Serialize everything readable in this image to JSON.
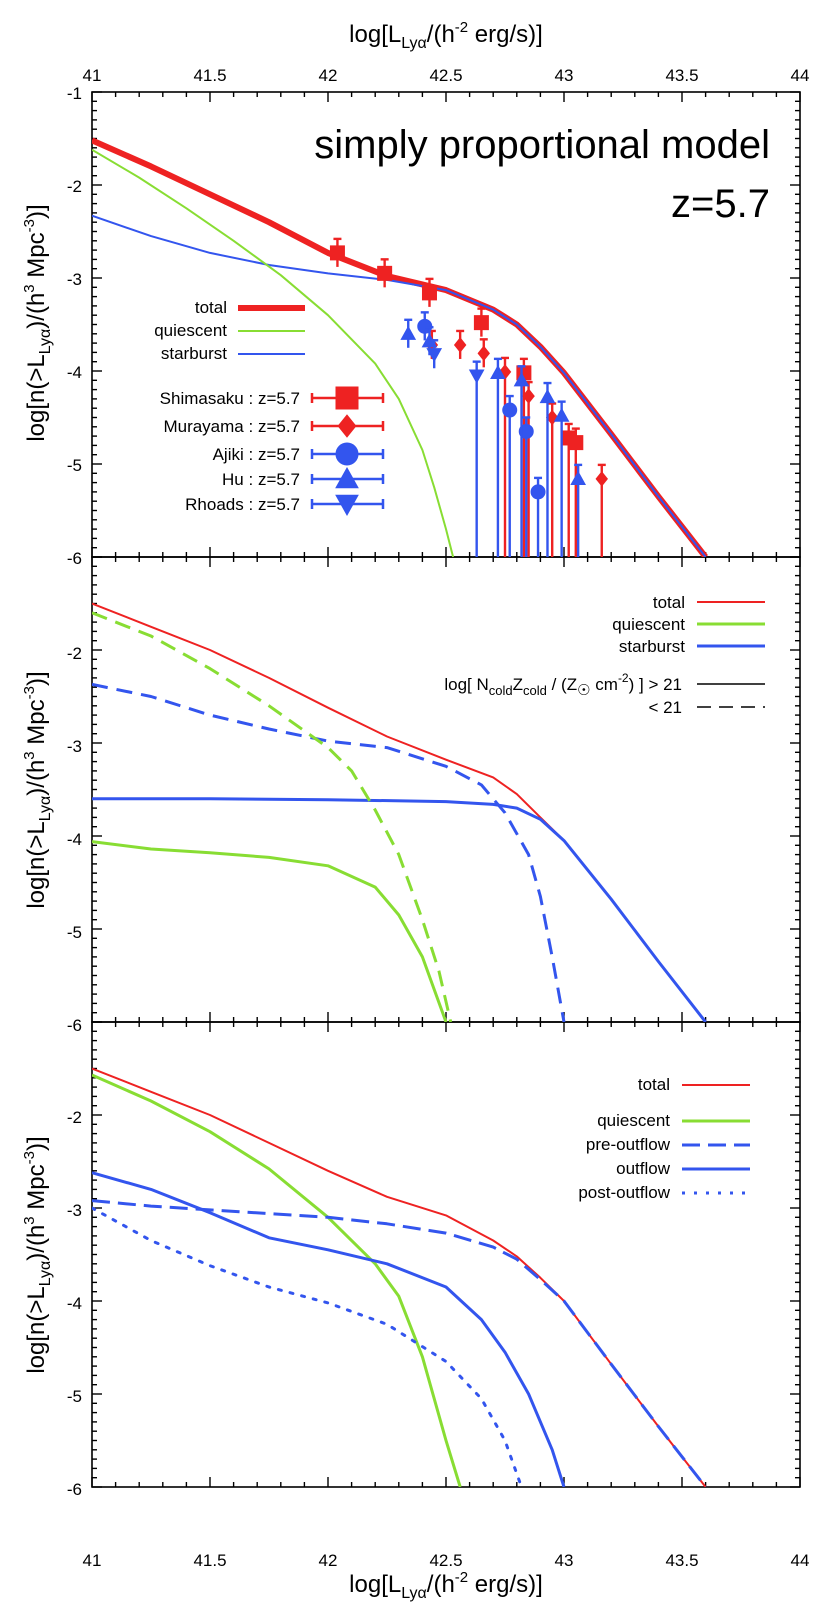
{
  "figure": {
    "top_axis_title": {
      "main": "log[L",
      "sub1": "Lyα",
      "mid": "/(h",
      "sup": "-2",
      "end": " erg/s)]"
    },
    "bottom_axis_title": {
      "main": "log[L",
      "sub1": "Lyα",
      "mid": "/(h",
      "sup": "-2",
      "end": " erg/s)]"
    },
    "y_axis_title": {
      "main": "log[n(>L",
      "sub1": "Lyα",
      "mid": ")/(h",
      "sup1": "3",
      "mid2": " Mpc",
      "sup2": "-3",
      "end": ")]"
    },
    "x_tick_labels": [
      "41",
      "41.5",
      "42",
      "42.5",
      "43",
      "43.5",
      "44"
    ],
    "panel_top_y_ticks": [
      "-1",
      "-2",
      "-3",
      "-4",
      "-5",
      "-6"
    ],
    "panel_mid_y_ticks": [
      "-2",
      "-3",
      "-4",
      "-5",
      "-6"
    ],
    "panel_bot_y_ticks": [
      "-2",
      "-3",
      "-4",
      "-5",
      "-6"
    ],
    "panel_top_title": "simply proportional model",
    "panel_top_redshift": "z=5.7"
  },
  "colors": {
    "red": "#ee2222",
    "green": "#88dd33",
    "blue": "#3355ee",
    "black": "#000000"
  },
  "legends": {
    "top": [
      {
        "label": "total",
        "color": "#ee2222",
        "style": "thick"
      },
      {
        "label": "quiescent",
        "color": "#88dd33",
        "style": "thin"
      },
      {
        "label": "starburst",
        "color": "#3355ee",
        "style": "thin"
      }
    ],
    "top_obs": [
      {
        "survey": "Shimasaku",
        "z": "z=5.7",
        "color": "#ee2222",
        "marker": "square"
      },
      {
        "survey": "Murayama",
        "z": "z=5.7",
        "color": "#ee2222",
        "marker": "diamond"
      },
      {
        "survey": "Ajiki",
        "z": "z=5.7",
        "color": "#3355ee",
        "marker": "circle"
      },
      {
        "survey": "Hu",
        "z": "z=5.7",
        "color": "#3355ee",
        "marker": "triangle-up"
      },
      {
        "survey": "Rhoads",
        "z": "z=5.7",
        "color": "#3355ee",
        "marker": "triangle-down"
      }
    ],
    "mid": [
      {
        "label": "total",
        "color": "#ee2222"
      },
      {
        "label": "quiescent",
        "color": "#88dd33"
      },
      {
        "label": "starburst",
        "color": "#3355ee"
      }
    ],
    "mid_style": {
      "solid": {
        "pre": "log[ N",
        "sub1": "cold",
        "mid": "Z",
        "sub2": "cold",
        "mid2": " / (Z",
        "sun": "☉",
        "mid3": " cm",
        "sup": "-2",
        "end": ") ] > 21"
      },
      "dashed": "< 21"
    },
    "bot": [
      {
        "label": "total",
        "color": "#ee2222",
        "dash": ""
      },
      {
        "label": "quiescent",
        "color": "#88dd33",
        "dash": ""
      },
      {
        "label": "pre-outflow",
        "color": "#3355ee",
        "dash": "16,7"
      },
      {
        "label": "outflow",
        "color": "#3355ee",
        "dash": ""
      },
      {
        "label": "post-outflow",
        "color": "#3355ee",
        "dash": "3,9"
      }
    ]
  },
  "chart_data": [
    {
      "type": "line",
      "panel": "top",
      "title": "simply proportional model",
      "annotation": "z=5.7",
      "xlim": [
        41,
        44
      ],
      "ylim": [
        -6,
        -1
      ],
      "xlabel": "log[LLyα/(h-2 erg/s)]",
      "ylabel": "log[n(>LLyα)/(h3 Mpc-3)]",
      "series": [
        {
          "name": "total",
          "color": "#ee2222",
          "width": 6,
          "x": [
            41,
            41.25,
            41.5,
            41.75,
            42,
            42.25,
            42.5,
            42.7,
            42.8,
            42.9,
            43,
            43.2,
            43.4,
            43.6
          ],
          "y": [
            -1.52,
            -1.8,
            -2.1,
            -2.4,
            -2.73,
            -2.98,
            -3.13,
            -3.34,
            -3.5,
            -3.74,
            -4.02,
            -4.68,
            -5.35,
            -6.0
          ]
        },
        {
          "name": "starburst",
          "color": "#3355ee",
          "width": 2,
          "x": [
            41,
            41.25,
            41.5,
            41.75,
            42,
            42.25,
            42.5,
            42.7,
            42.8,
            42.9,
            43,
            43.2,
            43.4,
            43.6
          ],
          "y": [
            -2.33,
            -2.55,
            -2.73,
            -2.86,
            -2.95,
            -3.02,
            -3.13,
            -3.34,
            -3.5,
            -3.74,
            -4.02,
            -4.68,
            -5.35,
            -6.0
          ]
        },
        {
          "name": "quiescent",
          "color": "#88dd33",
          "width": 2,
          "x": [
            41,
            41.2,
            41.4,
            41.6,
            41.8,
            42,
            42.2,
            42.3,
            42.4,
            42.45,
            42.5,
            42.53
          ],
          "y": [
            -1.62,
            -1.92,
            -2.25,
            -2.6,
            -2.97,
            -3.4,
            -3.92,
            -4.3,
            -4.85,
            -5.25,
            -5.7,
            -6.0
          ]
        }
      ],
      "observations": [
        {
          "name": "Shimasaku : z=5.7",
          "marker": "square",
          "color": "#ee2222",
          "points": [
            {
              "x": 42.04,
              "y": -2.73
            },
            {
              "x": 42.24,
              "y": -2.95
            },
            {
              "x": 42.43,
              "y": -3.16
            },
            {
              "x": 42.65,
              "y": -3.48
            },
            {
              "x": 42.83,
              "y": -4.02
            },
            {
              "x": 43.02,
              "y": -4.72
            },
            {
              "x": 43.05,
              "y": -4.77
            }
          ]
        },
        {
          "name": "Murayama : z=5.7",
          "marker": "diamond",
          "color": "#ee2222",
          "points": [
            {
              "x": 42.44,
              "y": -3.72
            },
            {
              "x": 42.56,
              "y": -3.72
            },
            {
              "x": 42.66,
              "y": -3.81
            },
            {
              "x": 42.75,
              "y": -4.01
            },
            {
              "x": 42.85,
              "y": -4.27
            },
            {
              "x": 42.95,
              "y": -4.5
            },
            {
              "x": 43.16,
              "y": -5.16
            }
          ]
        },
        {
          "name": "Ajiki : z=5.7",
          "marker": "circle",
          "color": "#3355ee",
          "points": [
            {
              "x": 42.41,
              "y": -3.52
            },
            {
              "x": 42.77,
              "y": -4.42
            },
            {
              "x": 42.84,
              "y": -4.65
            },
            {
              "x": 42.89,
              "y": -5.3
            }
          ]
        },
        {
          "name": "Hu : z=5.7",
          "marker": "triangle-up",
          "color": "#3355ee",
          "points": [
            {
              "x": 42.34,
              "y": -3.6
            },
            {
              "x": 42.43,
              "y": -3.68
            },
            {
              "x": 42.72,
              "y": -4.02
            },
            {
              "x": 42.82,
              "y": -4.1
            },
            {
              "x": 42.93,
              "y": -4.28
            },
            {
              "x": 42.99,
              "y": -4.48
            },
            {
              "x": 43.06,
              "y": -5.16
            }
          ]
        },
        {
          "name": "Rhoads : z=5.7",
          "marker": "triangle-down",
          "color": "#3355ee",
          "points": [
            {
              "x": 42.45,
              "y": -3.82
            },
            {
              "x": 42.63,
              "y": -4.05
            }
          ]
        }
      ]
    },
    {
      "type": "line",
      "panel": "middle",
      "xlim": [
        41,
        44
      ],
      "ylim": [
        -6,
        -1.4
      ],
      "series": [
        {
          "name": "total",
          "color": "#ee2222",
          "width": 2,
          "dash": "",
          "x": [
            41,
            41.25,
            41.5,
            41.75,
            42,
            42.25,
            42.5,
            42.7,
            42.8,
            42.9,
            43,
            43.2,
            43.4,
            43.6
          ],
          "y": [
            -1.5,
            -1.75,
            -2.0,
            -2.3,
            -2.62,
            -2.93,
            -3.18,
            -3.37,
            -3.55,
            -3.8,
            -4.05,
            -4.68,
            -5.35,
            -6.0
          ]
        },
        {
          "name": "starburst",
          "color": "#3355ee",
          "width": 3,
          "dash": "",
          "x": [
            41,
            41.5,
            42,
            42.5,
            42.7,
            42.8,
            42.9,
            43,
            43.2,
            43.4,
            43.6
          ],
          "y": [
            -3.6,
            -3.6,
            -3.61,
            -3.63,
            -3.66,
            -3.7,
            -3.82,
            -4.05,
            -4.68,
            -5.35,
            -6.0
          ]
        },
        {
          "name": "starburst",
          "color": "#3355ee",
          "width": 3,
          "dash": "16,9",
          "x": [
            41,
            41.25,
            41.5,
            41.75,
            42,
            42.25,
            42.5,
            42.65,
            42.75,
            42.85,
            42.9,
            42.95,
            43
          ],
          "y": [
            -2.37,
            -2.5,
            -2.7,
            -2.85,
            -2.98,
            -3.05,
            -3.25,
            -3.45,
            -3.75,
            -4.2,
            -4.65,
            -5.3,
            -6.0
          ]
        },
        {
          "name": "quiescent",
          "color": "#88dd33",
          "width": 3,
          "dash": "",
          "x": [
            41,
            41.25,
            41.5,
            41.75,
            42,
            42.2,
            42.3,
            42.4,
            42.45,
            42.5
          ],
          "y": [
            -4.06,
            -4.14,
            -4.18,
            -4.23,
            -4.32,
            -4.55,
            -4.85,
            -5.3,
            -5.65,
            -6.0
          ]
        },
        {
          "name": "quiescent",
          "color": "#88dd33",
          "width": 3,
          "dash": "16,9",
          "x": [
            41,
            41.25,
            41.5,
            41.75,
            42,
            42.1,
            42.2,
            42.3,
            42.4,
            42.47,
            42.52
          ],
          "y": [
            -1.6,
            -1.85,
            -2.2,
            -2.6,
            -3.05,
            -3.3,
            -3.72,
            -4.2,
            -4.9,
            -5.45,
            -6.0
          ]
        }
      ]
    },
    {
      "type": "line",
      "panel": "bottom",
      "xlim": [
        41,
        44
      ],
      "ylim": [
        -6,
        -1.4
      ],
      "series": [
        {
          "name": "total",
          "color": "#ee2222",
          "width": 2,
          "dash": "",
          "x": [
            41,
            41.25,
            41.5,
            41.75,
            42,
            42.25,
            42.5,
            42.7,
            42.8,
            42.9,
            43,
            43.2,
            43.4,
            43.6
          ],
          "y": [
            -1.5,
            -1.75,
            -2.0,
            -2.3,
            -2.6,
            -2.88,
            -3.08,
            -3.35,
            -3.52,
            -3.75,
            -4.0,
            -4.68,
            -5.35,
            -6.0
          ]
        },
        {
          "name": "quiescent",
          "color": "#88dd33",
          "width": 3,
          "dash": "",
          "x": [
            41,
            41.25,
            41.5,
            41.75,
            42,
            42.2,
            42.3,
            42.4,
            42.5,
            42.56
          ],
          "y": [
            -1.57,
            -1.85,
            -2.18,
            -2.58,
            -3.1,
            -3.6,
            -3.95,
            -4.6,
            -5.5,
            -6.0
          ]
        },
        {
          "name": "pre-outflow",
          "color": "#3355ee",
          "width": 3,
          "dash": "18,8",
          "x": [
            41,
            41.25,
            41.5,
            41.75,
            42,
            42.25,
            42.5,
            42.7,
            42.8,
            42.9,
            43,
            43.2,
            43.4,
            43.6
          ],
          "y": [
            -2.92,
            -2.98,
            -3.02,
            -3.06,
            -3.1,
            -3.17,
            -3.27,
            -3.42,
            -3.55,
            -3.77,
            -4.0,
            -4.68,
            -5.35,
            -6.0
          ]
        },
        {
          "name": "outflow",
          "color": "#3355ee",
          "width": 3,
          "dash": "",
          "x": [
            41,
            41.25,
            41.5,
            41.75,
            42,
            42.25,
            42.5,
            42.65,
            42.75,
            42.85,
            42.95,
            43
          ],
          "y": [
            -2.62,
            -2.8,
            -3.05,
            -3.32,
            -3.45,
            -3.6,
            -3.85,
            -4.2,
            -4.55,
            -5.0,
            -5.6,
            -6.0
          ]
        },
        {
          "name": "post-outflow",
          "color": "#3355ee",
          "width": 3,
          "dash": "3,9",
          "x": [
            41,
            41.25,
            41.5,
            41.75,
            42,
            42.25,
            42.5,
            42.65,
            42.75,
            42.82
          ],
          "y": [
            -3.0,
            -3.35,
            -3.62,
            -3.85,
            -4.02,
            -4.25,
            -4.65,
            -5.05,
            -5.5,
            -6.0
          ]
        }
      ]
    }
  ]
}
